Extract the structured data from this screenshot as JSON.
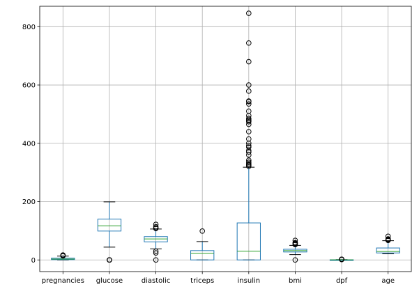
{
  "chart_data": {
    "type": "box",
    "title": "",
    "xlabel": "",
    "ylabel": "",
    "ylim": [
      -40,
      870
    ],
    "yticks": [
      0,
      200,
      400,
      600,
      800
    ],
    "grid": true,
    "colors": {
      "box": "#1f77b4",
      "median": "#2ca02c",
      "whisker": "#000000",
      "flier": "#000000",
      "grid": "#b0b0b0"
    },
    "categories": [
      "pregnancies",
      "glucose",
      "diastolic",
      "triceps",
      "insulin",
      "bmi",
      "dpf",
      "age"
    ],
    "boxes": [
      {
        "category": "pregnancies",
        "q1": 1,
        "median": 3,
        "q3": 6,
        "whisker_low": 0,
        "whisker_high": 13,
        "fliers": [
          14,
          15,
          17
        ]
      },
      {
        "category": "glucose",
        "q1": 99,
        "median": 117,
        "q3": 140,
        "whisker_low": 44,
        "whisker_high": 199,
        "fliers": [
          0,
          0,
          0,
          0,
          0
        ]
      },
      {
        "category": "diastolic",
        "q1": 62,
        "median": 72,
        "q3": 80,
        "whisker_low": 38,
        "whisker_high": 106,
        "fliers": [
          0,
          24,
          30,
          108,
          110,
          114,
          122
        ]
      },
      {
        "category": "triceps",
        "q1": 0,
        "median": 23,
        "q3": 32,
        "whisker_low": 0,
        "whisker_high": 63,
        "fliers": [
          99
        ]
      },
      {
        "category": "insulin",
        "q1": 0,
        "median": 30,
        "q3": 127,
        "whisker_low": 0,
        "whisker_high": 318,
        "fliers": [
          321,
          325,
          326,
          330,
          335,
          342,
          360,
          370,
          375,
          387,
          392,
          400,
          415,
          440,
          465,
          474,
          478,
          480,
          485,
          495,
          510,
          535,
          543,
          545,
          579,
          600,
          680,
          744,
          846
        ]
      },
      {
        "category": "bmi",
        "q1": 27.3,
        "median": 32,
        "q3": 36.6,
        "whisker_low": 18.2,
        "whisker_high": 50,
        "fliers": [
          0,
          52.3,
          55,
          57.3,
          59.4,
          67.1
        ]
      },
      {
        "category": "dpf",
        "q1": 0.24,
        "median": 0.37,
        "q3": 0.63,
        "whisker_low": 0.08,
        "whisker_high": 1.2,
        "fliers": [
          1.4,
          1.6,
          1.9,
          2.1,
          2.3,
          2.42
        ]
      },
      {
        "category": "age",
        "q1": 24,
        "median": 29,
        "q3": 41,
        "whisker_low": 21,
        "whisker_high": 66,
        "fliers": [
          67,
          68,
          69,
          70,
          72,
          81
        ]
      }
    ]
  }
}
